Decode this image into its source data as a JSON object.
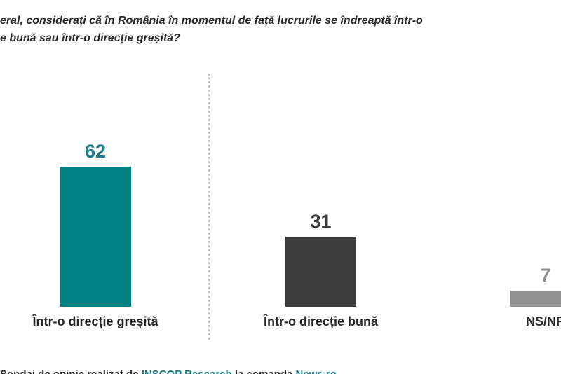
{
  "header": {
    "title_line1": "eral, considerați că în România în momentul de față lucrurile se îndreaptă într-o",
    "title_line2": "e bună sau într-o direcție greșită?"
  },
  "chart_data": {
    "type": "bar",
    "title": "eral, considerați că în România în momentul de față lucrurile se îndreaptă într-o e bună sau într-o direcție greșită?",
    "categories": [
      "Într-o direcție greșită",
      "Într-o direcție bună",
      "NS/NR"
    ],
    "values": [
      62,
      31,
      7
    ],
    "bar_colors": [
      "#008080",
      "#3b3b3b",
      "#929292"
    ],
    "value_label_colors": [
      "#147c8c",
      "#3b3b3b",
      "#8f8f8f"
    ],
    "category_label_color": "#262626",
    "data_labels": true,
    "axes_visible": false,
    "gridlines": false,
    "legend": false,
    "ylim": [
      0,
      70
    ],
    "notes": "divider-dotted-line-between-first-and-second-bar; third bar and its label cropped at right edge"
  },
  "footer": {
    "segments": [
      {
        "text": "Sondaj de opinie realizat de ",
        "color": "#2b2b2b"
      },
      {
        "text": "INSCOP Research",
        "color": "#147c8c"
      },
      {
        "text": " la comanda ",
        "color": "#2b2b2b"
      },
      {
        "text": "News.ro",
        "color": "#147c8c"
      }
    ]
  }
}
